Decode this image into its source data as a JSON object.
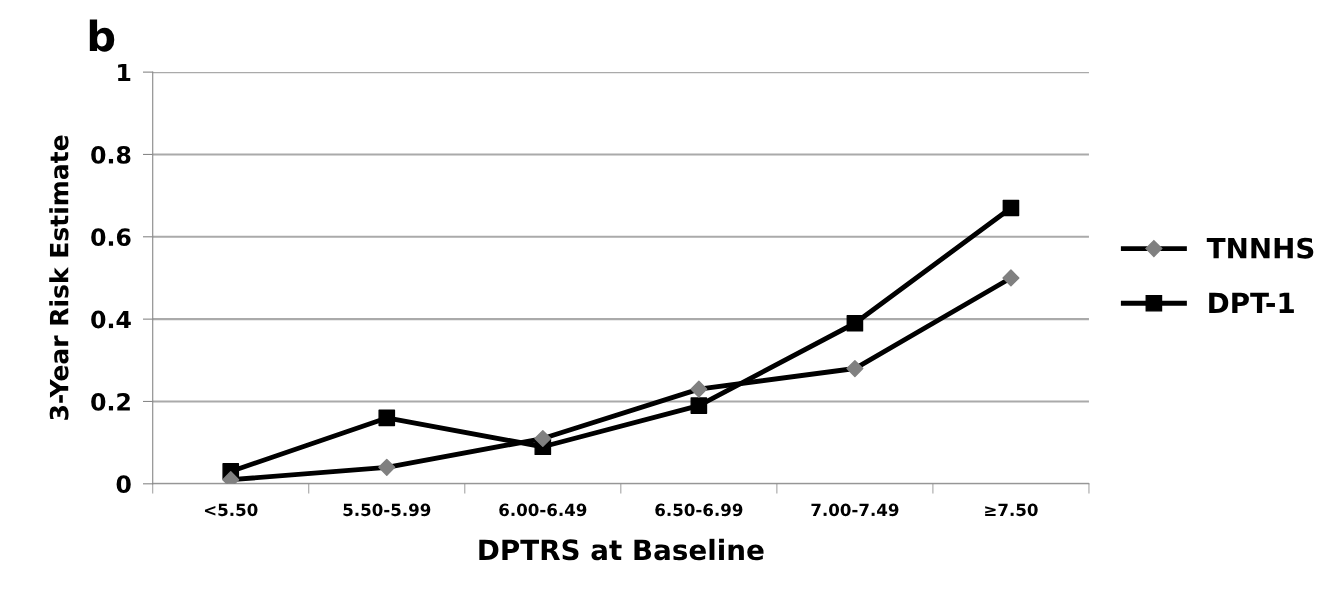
{
  "chart_data": {
    "type": "line",
    "title": "b",
    "xlabel": "DPTRS at Baseline",
    "ylabel": "3-Year Risk Estimate",
    "categories": [
      "<5.50",
      "5.50-5.99",
      "6.00-6.49",
      "6.50-6.99",
      "7.00-7.49",
      "≥7.50"
    ],
    "series": [
      {
        "name": "TNNHS",
        "color": "#000000",
        "colors": [
          "#808080",
          "#808080",
          "#808080",
          "#808080",
          "#808080",
          "#808080"
        ],
        "marker": "diamond",
        "values": [
          0.01,
          0.04,
          0.11,
          0.23,
          0.28,
          0.5
        ]
      },
      {
        "name": "DPT-1",
        "color": "#000000",
        "marker": "square",
        "values": [
          0.03,
          0.16,
          0.09,
          0.19,
          0.39,
          0.67
        ]
      }
    ],
    "ylim": [
      0,
      1
    ],
    "yticks": [
      0,
      0.2,
      0.4,
      0.6,
      0.8,
      1
    ],
    "grid": "y",
    "legend": "right",
    "line_style": "solid"
  }
}
